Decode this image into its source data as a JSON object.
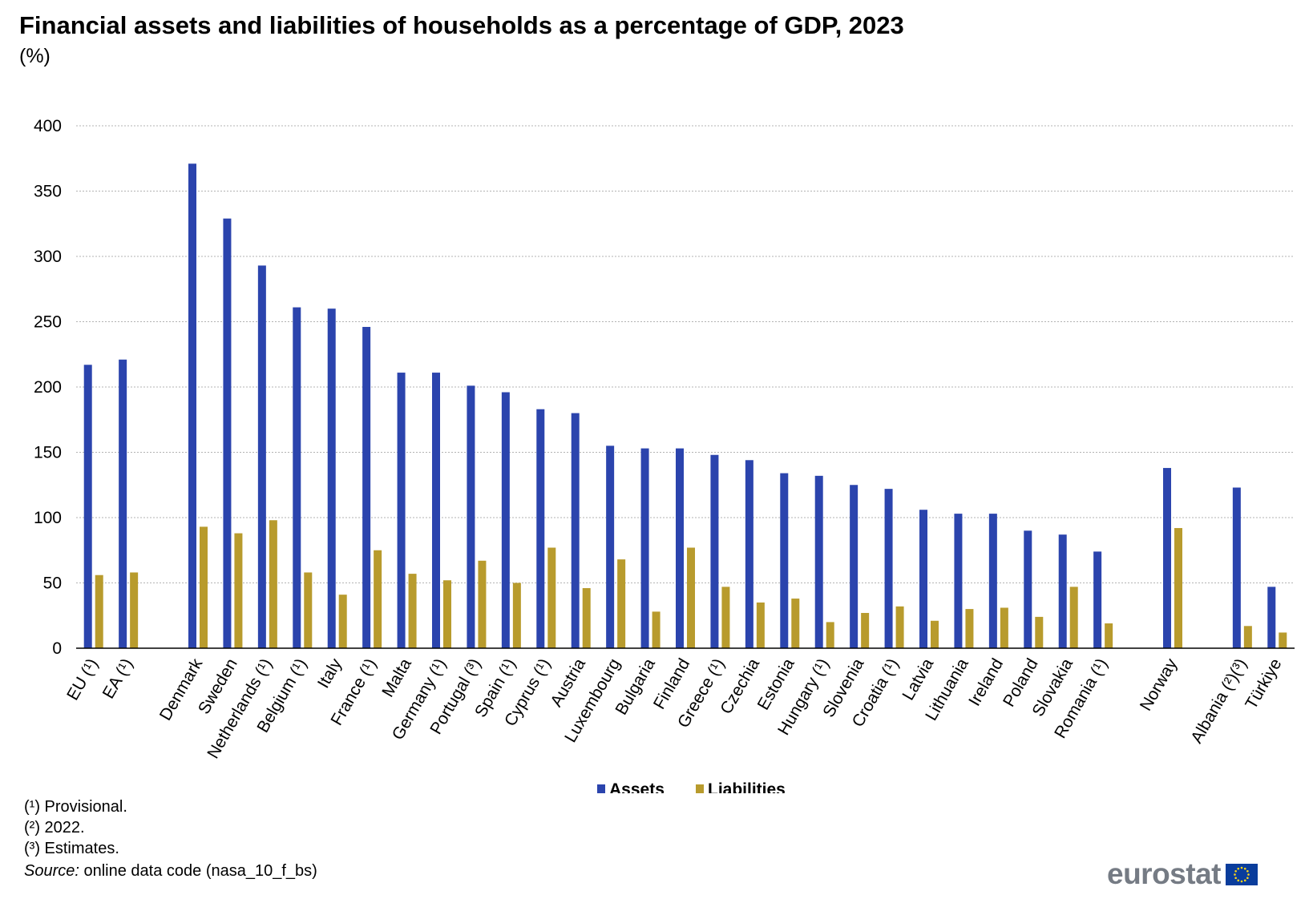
{
  "title": "Financial assets and liabilities of households as a percentage of GDP, 2023",
  "subtitle": "(%)",
  "notes": [
    "(¹) Provisional.",
    "(²) 2022.",
    "(³) Estimates."
  ],
  "source": {
    "label": "Source:",
    "text": " online data code (nasa_10_f_bs)"
  },
  "logo": {
    "text": "eurostat",
    "icon": "eu-flag-icon"
  },
  "colors": {
    "assets": "#2b44ad",
    "liabilities": "#b89b2d",
    "grid": "#b3b3b3",
    "axis": "#000000"
  },
  "chart_data": {
    "type": "bar",
    "title": "Financial assets and liabilities of households as a percentage of GDP, 2023",
    "ylabel": "(%)",
    "ylim": [
      0,
      400
    ],
    "yticks": [
      0,
      50,
      100,
      150,
      200,
      250,
      300,
      350,
      400
    ],
    "grid": true,
    "legend": "bottom-center",
    "categories": [
      "EU (¹)",
      "EA (¹)",
      "",
      "Denmark",
      "Sweden",
      "Netherlands (¹)",
      "Belgium (¹)",
      "Italy",
      "France (¹)",
      "Malta",
      "Germany (¹)",
      "Portugal (³)",
      "Spain (¹)",
      "Cyprus (¹)",
      "Austria",
      "Luxembourg",
      "Bulgaria",
      "Finland",
      "Greece (¹)",
      "Czechia",
      "Estonia",
      "Hungary (¹)",
      "Slovenia",
      "Croatia (¹)",
      "Latvia",
      "Lithuania",
      "Ireland",
      "Poland",
      "Slovakia",
      "Romania (¹)",
      "",
      "Norway",
      "",
      "Albania (²)(³)",
      "Türkiye"
    ],
    "series": [
      {
        "name": "Assets",
        "values": [
          217,
          221,
          null,
          371,
          329,
          293,
          261,
          260,
          246,
          211,
          211,
          201,
          196,
          183,
          180,
          155,
          153,
          153,
          148,
          144,
          134,
          132,
          125,
          122,
          106,
          103,
          103,
          90,
          87,
          74,
          null,
          138,
          null,
          123,
          47
        ]
      },
      {
        "name": "Liabilities",
        "values": [
          56,
          58,
          null,
          93,
          88,
          98,
          58,
          41,
          75,
          57,
          52,
          67,
          50,
          77,
          46,
          68,
          28,
          77,
          47,
          35,
          38,
          20,
          27,
          32,
          21,
          30,
          31,
          24,
          47,
          19,
          null,
          92,
          null,
          17,
          12
        ]
      }
    ]
  }
}
